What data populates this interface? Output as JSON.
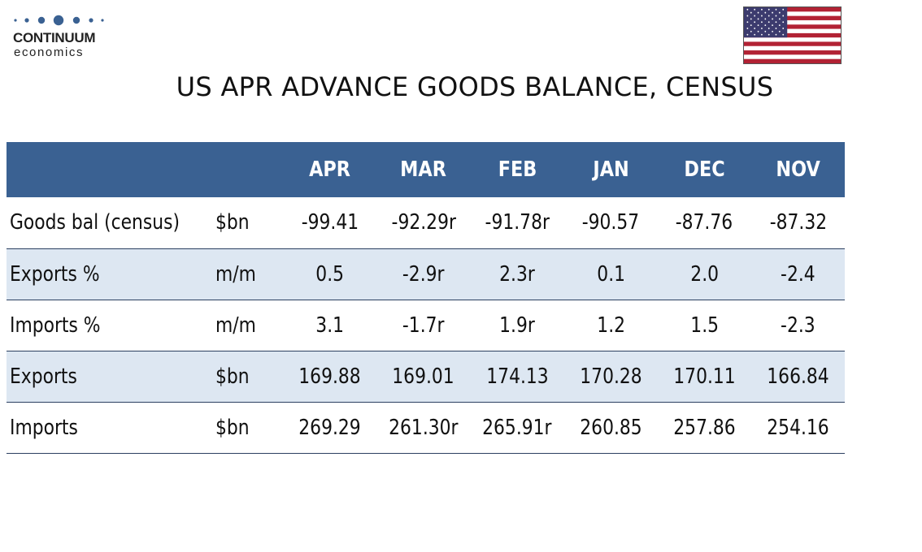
{
  "brand": {
    "name": "CONTINUUM",
    "sub": "economics",
    "dot_color": "#3a6192",
    "flag_icon": "us-flag-icon"
  },
  "title": "US APR ADVANCE GOODS BALANCE, CENSUS",
  "colors": {
    "header_bg": "#3a6192",
    "header_text": "#ffffff",
    "row_shade": "#dde7f2",
    "row_rule": "#2b3f60"
  },
  "table": {
    "headers": [
      "",
      "",
      "APR",
      "MAR",
      "FEB",
      "JAN",
      "DEC",
      "NOV"
    ],
    "rows": [
      {
        "label": "Goods bal (census)",
        "unit": "$bn",
        "values": [
          "-99.41",
          "-92.29r",
          "-91.78r",
          "-90.57",
          "-87.76",
          "-87.32"
        ]
      },
      {
        "label": "Exports %",
        "unit": "m/m",
        "values": [
          "0.5",
          "-2.9r",
          "2.3r",
          "0.1",
          "2.0",
          "-2.4"
        ]
      },
      {
        "label": "Imports %",
        "unit": "m/m",
        "values": [
          "3.1",
          "-1.7r",
          "1.9r",
          "1.2",
          "1.5",
          "-2.3"
        ]
      },
      {
        "label": "Exports",
        "unit": "$bn",
        "values": [
          "169.88",
          "169.01",
          "174.13",
          "170.28",
          "170.11",
          "166.84"
        ]
      },
      {
        "label": "Imports",
        "unit": "$bn",
        "values": [
          "269.29",
          "261.30r",
          "265.91r",
          "260.85",
          "257.86",
          "254.16"
        ]
      }
    ]
  }
}
